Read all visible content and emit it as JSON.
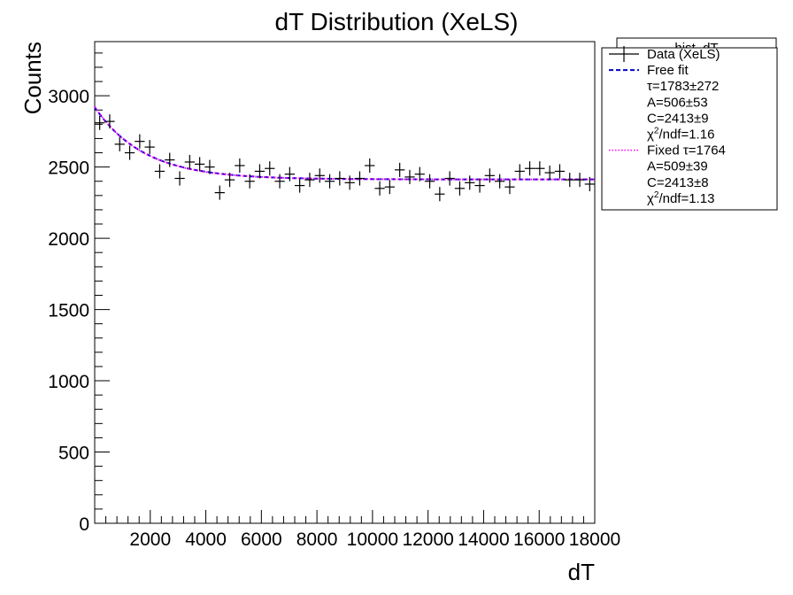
{
  "chart_data": {
    "type": "scatter",
    "title": "dT Distribution (XeLS)",
    "xlabel": "dT",
    "ylabel": "Counts",
    "xlim": [
      0,
      18000
    ],
    "ylim": [
      0,
      3380
    ],
    "x_ticks": [
      2000,
      4000,
      6000,
      8000,
      10000,
      12000,
      14000,
      16000,
      18000
    ],
    "x_tick_labels": [
      "2000",
      "4000",
      "6000",
      "8000",
      "10000",
      "12000",
      "14000",
      "16000",
      "18000"
    ],
    "y_ticks": [
      0,
      500,
      1000,
      1500,
      2000,
      2500,
      3000
    ],
    "y_tick_labels": [
      "0",
      "500",
      "1000",
      "1500",
      "2000",
      "2500",
      "3000"
    ],
    "grid": false,
    "legend_position": "top-right outside plot",
    "stats_box_title": "hist_dT",
    "series": [
      {
        "name": "Data (XeLS)",
        "kind": "points-with-errors",
        "color": "#000000",
        "x": [
          180,
          540,
          900,
          1260,
          1620,
          1980,
          2340,
          2700,
          3060,
          3420,
          3780,
          4140,
          4500,
          4860,
          5220,
          5580,
          5940,
          6300,
          6660,
          7020,
          7380,
          7740,
          8100,
          8460,
          8820,
          9180,
          9540,
          9900,
          10260,
          10620,
          10980,
          11340,
          11700,
          12060,
          12420,
          12780,
          13140,
          13500,
          13860,
          14220,
          14580,
          14940,
          15300,
          15660,
          16020,
          16380,
          16740,
          17100,
          17460,
          17820
        ],
        "values": [
          2810,
          2820,
          2660,
          2600,
          2680,
          2640,
          2470,
          2550,
          2420,
          2535,
          2520,
          2500,
          2320,
          2410,
          2510,
          2400,
          2470,
          2490,
          2400,
          2450,
          2370,
          2410,
          2440,
          2400,
          2420,
          2390,
          2420,
          2510,
          2350,
          2360,
          2480,
          2430,
          2450,
          2400,
          2310,
          2420,
          2350,
          2390,
          2370,
          2440,
          2400,
          2360,
          2470,
          2490,
          2490,
          2460,
          2470,
          2410,
          2410,
          2380
        ],
        "x_half_width": 180,
        "y_error": 50
      },
      {
        "name": "Free fit",
        "kind": "line",
        "style": "dashed",
        "color": "#0000cc",
        "model": "A*exp(-x/tau)+C",
        "params": {
          "tau": 1783,
          "A": 506,
          "C": 2413
        }
      },
      {
        "name": "Fixed τ=1764",
        "kind": "line",
        "style": "dotted",
        "color": "#ff00ff",
        "model": "A*exp(-x/tau)+C",
        "params": {
          "tau": 1764,
          "A": 509,
          "C": 2413
        }
      }
    ],
    "legend": {
      "items": [
        {
          "label": "Data (XeLS)",
          "marker": "cross",
          "color": "#000000"
        },
        {
          "label": "Free fit",
          "marker": "dashed-line",
          "color": "#0000cc"
        },
        {
          "label": "τ=1783±272",
          "marker": "none"
        },
        {
          "label": "A=506±53",
          "marker": "none"
        },
        {
          "label": "C=2413±9",
          "marker": "none"
        },
        {
          "label": "χ2/ndf=1.16",
          "marker": "none",
          "sup": true
        },
        {
          "label": "Fixed τ=1764",
          "marker": "dotted-line",
          "color": "#ff00ff"
        },
        {
          "label": "A=509±39",
          "marker": "none"
        },
        {
          "label": "C=2413±8",
          "marker": "none"
        },
        {
          "label": "χ2/ndf=1.13",
          "marker": "none",
          "sup": true
        }
      ]
    }
  }
}
